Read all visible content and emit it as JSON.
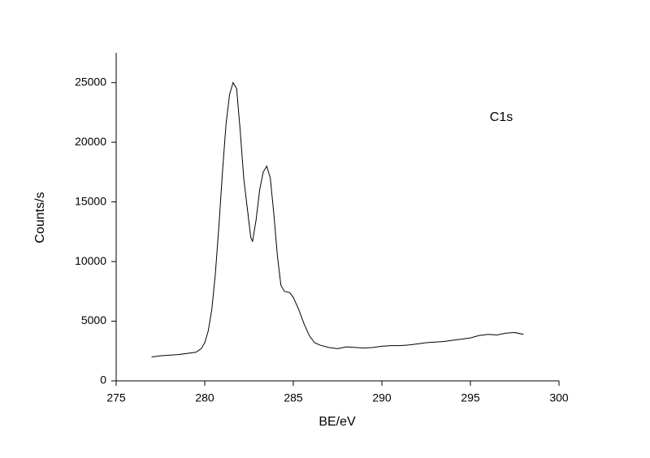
{
  "chart_data": {
    "type": "line",
    "xlabel": "BE/eV",
    "ylabel": "Counts/s",
    "annotation": "C1s",
    "xlim": [
      275,
      300
    ],
    "xticks": [
      275,
      280,
      285,
      290,
      295,
      300
    ],
    "ylim": [
      0,
      27500
    ],
    "yticks": [
      0,
      5000,
      10000,
      15000,
      20000,
      25000
    ],
    "series": [
      {
        "color": "#000000",
        "x": [
          277.0,
          277.5,
          278.0,
          278.5,
          279.0,
          279.5,
          279.8,
          280.0,
          280.2,
          280.4,
          280.6,
          280.8,
          281.0,
          281.2,
          281.4,
          281.6,
          281.8,
          282.0,
          282.2,
          282.4,
          282.6,
          282.7,
          282.9,
          283.1,
          283.3,
          283.5,
          283.7,
          283.9,
          284.1,
          284.3,
          284.5,
          284.8,
          285.0,
          285.3,
          285.6,
          285.9,
          286.2,
          286.5,
          287.0,
          287.5,
          288.0,
          288.5,
          289.0,
          289.5,
          290.0,
          290.5,
          291.0,
          291.5,
          292.0,
          292.5,
          293.0,
          293.5,
          294.0,
          294.5,
          295.0,
          295.5,
          296.0,
          296.5,
          297.0,
          297.5,
          298.0
        ],
        "values": [
          2000,
          2100,
          2150,
          2200,
          2300,
          2400,
          2700,
          3200,
          4200,
          6000,
          9000,
          13000,
          17500,
          21500,
          24000,
          25000,
          24500,
          21000,
          17000,
          14500,
          12000,
          11700,
          13500,
          16000,
          17500,
          18000,
          17000,
          14000,
          10500,
          8000,
          7500,
          7400,
          7000,
          6000,
          4800,
          3800,
          3200,
          3000,
          2800,
          2700,
          2850,
          2800,
          2750,
          2800,
          2900,
          2950,
          2950,
          3000,
          3100,
          3200,
          3250,
          3300,
          3400,
          3500,
          3600,
          3800,
          3900,
          3850,
          4000,
          4050,
          3900
        ]
      }
    ]
  }
}
